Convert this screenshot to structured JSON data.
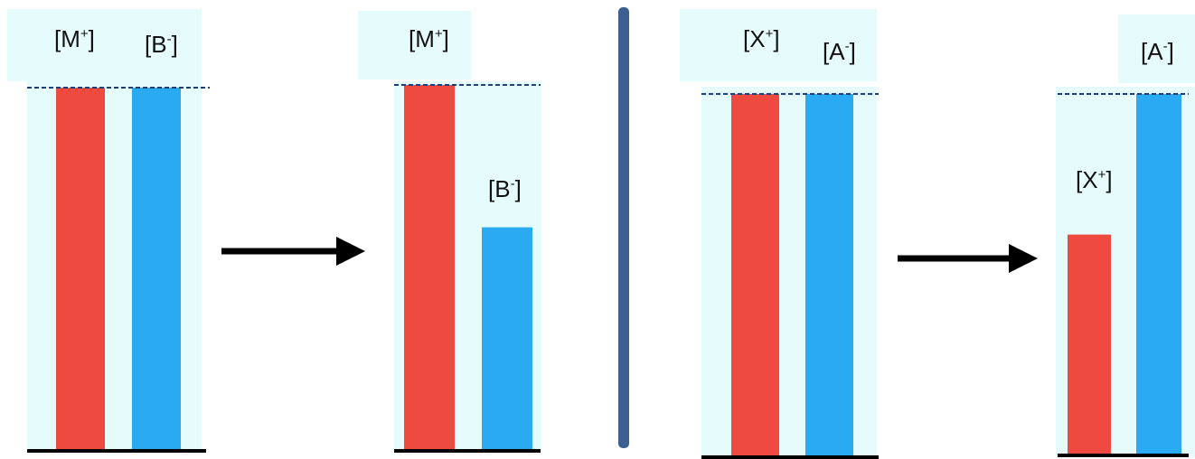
{
  "colors": {
    "cation": "#ee4a3f",
    "anion": "#2aaaf0",
    "panel_bg": "#e6fbfc",
    "level_line": "#1f3f7a",
    "divider": "#3e5f91",
    "arrow": "#000000",
    "baseline": "#000000"
  },
  "chart_data": [
    {
      "type": "bar",
      "group": "left-before",
      "series": [
        {
          "label": "[M",
          "sup": "+",
          "close": "]",
          "value": 1.0,
          "color_key": "cation"
        },
        {
          "label": "[B",
          "sup": "-",
          "close": "]",
          "value": 1.0,
          "color_key": "anion"
        }
      ],
      "ylim": [
        0,
        1
      ]
    },
    {
      "type": "bar",
      "group": "left-after",
      "series": [
        {
          "label": "[M",
          "sup": "+",
          "close": "]",
          "value": 1.0,
          "color_key": "cation"
        },
        {
          "label": "[B",
          "sup": "-",
          "close": "]",
          "value": 0.61,
          "color_key": "anion"
        }
      ],
      "ylim": [
        0,
        1
      ]
    },
    {
      "type": "bar",
      "group": "right-before",
      "series": [
        {
          "label": "[X",
          "sup": "+",
          "close": "]",
          "value": 1.0,
          "color_key": "cation"
        },
        {
          "label": "[A",
          "sup": "-",
          "close": "]",
          "value": 1.0,
          "color_key": "anion"
        }
      ],
      "ylim": [
        0,
        1
      ]
    },
    {
      "type": "bar",
      "group": "right-after",
      "series": [
        {
          "label": "[X",
          "sup": "+",
          "close": "]",
          "value": 0.61,
          "color_key": "cation"
        },
        {
          "label": "[A",
          "sup": "-",
          "close": "]",
          "value": 1.0,
          "color_key": "anion"
        }
      ],
      "ylim": [
        0,
        1
      ]
    }
  ]
}
